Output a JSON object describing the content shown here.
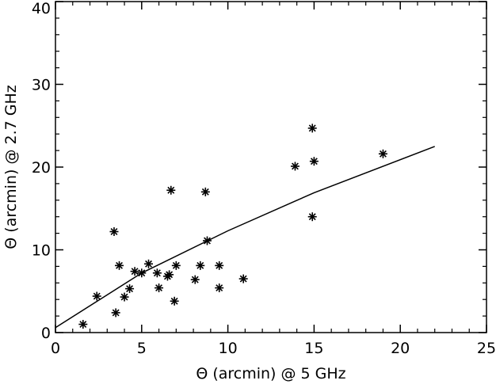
{
  "chart_data": {
    "type": "scatter",
    "title": "",
    "xlabel": "Θ (arcmin) @ 5 GHz",
    "ylabel": "Θ (arcmin) @ 2.7 GHz",
    "xlim": [
      0,
      25
    ],
    "ylim": [
      0,
      40
    ],
    "xticks": [
      0,
      5,
      10,
      15,
      20,
      25
    ],
    "yticks": [
      0,
      10,
      20,
      30,
      40
    ],
    "grid": false,
    "marker": "asterisk",
    "colors": {
      "axes": "#000000",
      "points": "#000000",
      "line": "#000000",
      "background": "#ffffff"
    },
    "series": [
      {
        "kind": "points",
        "points": [
          {
            "x": 1.6,
            "y": 1.0
          },
          {
            "x": 2.4,
            "y": 4.4
          },
          {
            "x": 3.4,
            "y": 12.2
          },
          {
            "x": 3.5,
            "y": 2.4
          },
          {
            "x": 3.7,
            "y": 8.1
          },
          {
            "x": 4.0,
            "y": 4.3
          },
          {
            "x": 4.3,
            "y": 5.3
          },
          {
            "x": 4.6,
            "y": 7.4
          },
          {
            "x": 5.0,
            "y": 7.2
          },
          {
            "x": 5.4,
            "y": 8.3
          },
          {
            "x": 5.9,
            "y": 7.2
          },
          {
            "x": 6.0,
            "y": 5.4
          },
          {
            "x": 6.5,
            "y": 6.8
          },
          {
            "x": 6.6,
            "y": 7.0
          },
          {
            "x": 6.7,
            "y": 17.2
          },
          {
            "x": 6.9,
            "y": 3.8
          },
          {
            "x": 7.0,
            "y": 8.1
          },
          {
            "x": 8.1,
            "y": 6.4
          },
          {
            "x": 8.4,
            "y": 8.1
          },
          {
            "x": 8.7,
            "y": 17.0
          },
          {
            "x": 8.8,
            "y": 11.1
          },
          {
            "x": 9.5,
            "y": 5.4
          },
          {
            "x": 9.5,
            "y": 8.1
          },
          {
            "x": 10.9,
            "y": 6.5
          },
          {
            "x": 13.9,
            "y": 20.1
          },
          {
            "x": 14.9,
            "y": 24.7
          },
          {
            "x": 15.0,
            "y": 20.7
          },
          {
            "x": 14.9,
            "y": 14.0
          },
          {
            "x": 19.0,
            "y": 21.6
          }
        ]
      },
      {
        "kind": "line",
        "points": [
          {
            "x": 0.0,
            "y": 0.6
          },
          {
            "x": 5.0,
            "y": 7.2
          },
          {
            "x": 10.0,
            "y": 12.3
          },
          {
            "x": 15.0,
            "y": 16.9
          },
          {
            "x": 22.0,
            "y": 22.5
          }
        ]
      }
    ]
  }
}
